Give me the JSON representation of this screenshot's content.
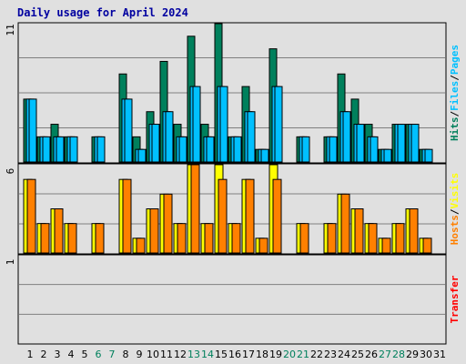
{
  "title": "Daily usage for April 2024",
  "colors": {
    "hits": "#00805c",
    "files": "#00c0ff",
    "pages": "#00c0ff",
    "visits": "#ffff00",
    "hosts": "#ff8000",
    "transfer": "#ff0000",
    "weekday": "#000000",
    "weekend": "#00805c"
  },
  "chart_data": [
    {
      "type": "bar",
      "panel": "hits-files-pages",
      "label_parts": [
        "Hits",
        "/",
        "Files",
        "/",
        "Pages"
      ],
      "max_label": "11",
      "ylim": [
        0,
        11
      ],
      "categories": [
        "1",
        "2",
        "3",
        "4",
        "5",
        "6",
        "7",
        "8",
        "9",
        "10",
        "11",
        "12",
        "13",
        "14",
        "15",
        "16",
        "17",
        "18",
        "19",
        "20",
        "21",
        "22",
        "23",
        "24",
        "25",
        "26",
        "27",
        "28",
        "29",
        "30",
        "31"
      ],
      "weekend_days": [
        "6",
        "7",
        "13",
        "14",
        "20",
        "21",
        "27",
        "28"
      ],
      "series": [
        {
          "name": "Hits",
          "values": [
            5,
            2,
            3,
            2,
            0,
            2,
            0,
            7,
            2,
            4,
            8,
            3,
            10,
            3,
            11,
            2,
            6,
            1,
            9,
            0,
            2,
            0,
            2,
            7,
            5,
            3,
            1,
            3,
            3,
            1,
            0
          ]
        },
        {
          "name": "Files",
          "values": [
            5,
            2,
            2,
            2,
            0,
            2,
            0,
            5,
            1,
            3,
            4,
            2,
            6,
            2,
            6,
            2,
            4,
            1,
            6,
            0,
            2,
            0,
            2,
            4,
            3,
            2,
            1,
            3,
            3,
            1,
            0
          ]
        },
        {
          "name": "Pages",
          "values": [
            5,
            2,
            2,
            2,
            0,
            2,
            0,
            5,
            1,
            3,
            4,
            2,
            6,
            2,
            6,
            2,
            4,
            1,
            6,
            0,
            2,
            0,
            2,
            4,
            3,
            2,
            1,
            3,
            3,
            1,
            0
          ]
        }
      ]
    },
    {
      "type": "bar",
      "panel": "visits-hosts",
      "label_parts": [
        "Hosts",
        "/",
        "Visits"
      ],
      "max_label": "6",
      "ylim": [
        0,
        6
      ],
      "series": [
        {
          "name": "Visits",
          "values": [
            5,
            2,
            3,
            2,
            0,
            2,
            0,
            5,
            1,
            3,
            4,
            2,
            6,
            2,
            6,
            2,
            5,
            1,
            6,
            0,
            2,
            0,
            2,
            4,
            3,
            2,
            1,
            2,
            3,
            1,
            0
          ]
        },
        {
          "name": "Hosts",
          "values": [
            5,
            2,
            3,
            2,
            0,
            2,
            0,
            5,
            1,
            3,
            4,
            2,
            6,
            2,
            5,
            2,
            5,
            1,
            5,
            0,
            2,
            0,
            2,
            4,
            3,
            2,
            1,
            2,
            3,
            1,
            0
          ]
        }
      ]
    },
    {
      "type": "bar",
      "panel": "transfer",
      "label_parts": [
        "Transfer"
      ],
      "max_label": "1",
      "ylim": [
        0,
        1
      ],
      "series": [
        {
          "name": "Transfer",
          "values": [
            0,
            0,
            0,
            0,
            0,
            0,
            0,
            0,
            0,
            0,
            0,
            0,
            0,
            0,
            0,
            0,
            0,
            0,
            0,
            0,
            0,
            0,
            0,
            0,
            0,
            0,
            0,
            0,
            0,
            0,
            0
          ]
        }
      ]
    }
  ]
}
